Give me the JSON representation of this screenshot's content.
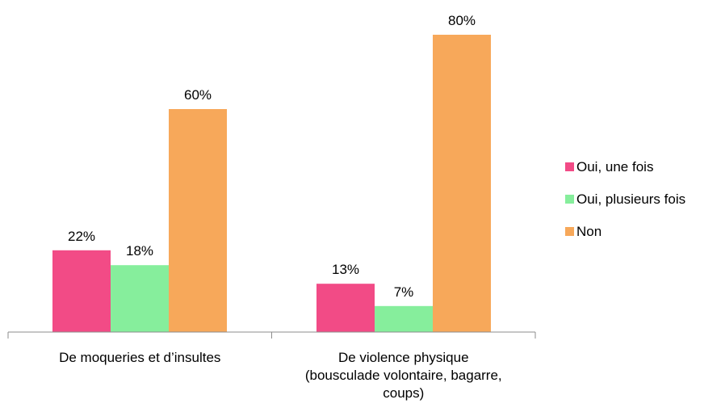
{
  "chart_data": {
    "type": "bar",
    "categories": [
      [
        "De moqueries et d’insultes"
      ],
      [
        "De violence physique",
        "(bousculade volontaire, bagarre,",
        "coups)"
      ]
    ],
    "series": [
      {
        "name": "Oui, une fois",
        "values": [
          22,
          13
        ],
        "color": "#f24b86"
      },
      {
        "name": "Oui, plusieurs fois",
        "values": [
          18,
          7
        ],
        "color": "#86ee9c"
      },
      {
        "name": "Non",
        "values": [
          60,
          80
        ],
        "color": "#f7a85a"
      }
    ],
    "value_labels": [
      [
        "22%",
        "13%"
      ],
      [
        "18%",
        "7%"
      ],
      [
        "60%",
        "80%"
      ]
    ],
    "ylim": [
      0,
      100
    ],
    "legend_position": "right",
    "grid": false
  }
}
